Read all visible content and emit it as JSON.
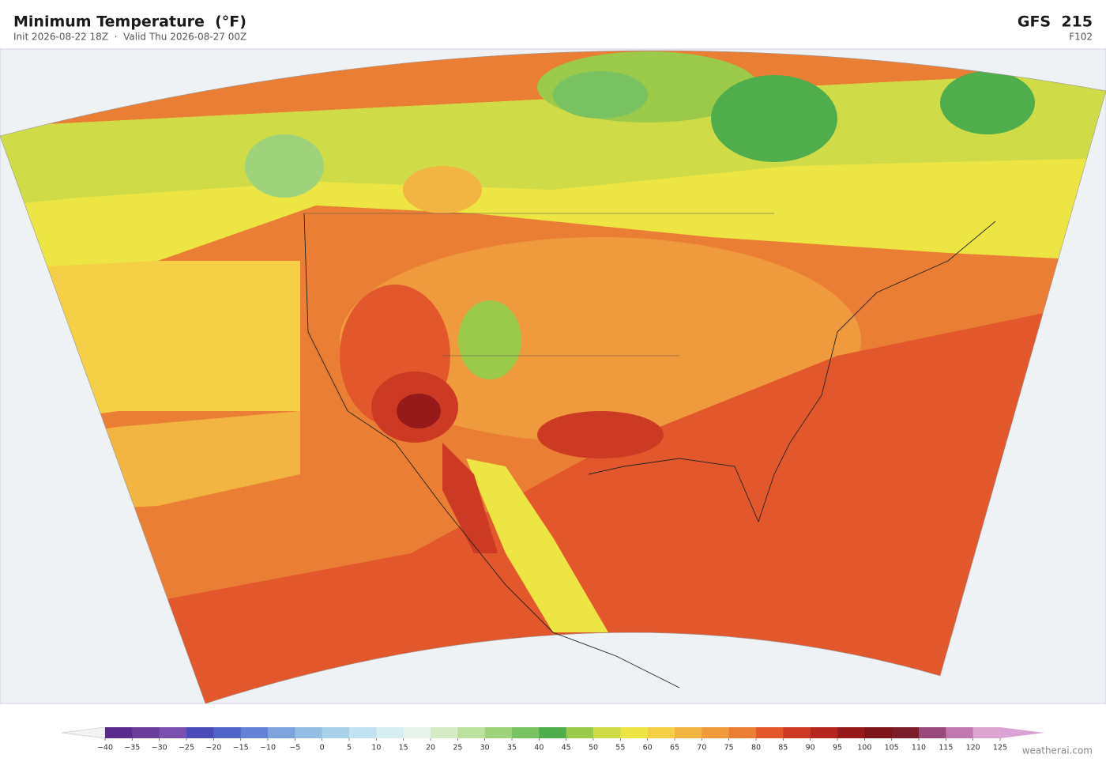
{
  "header": {
    "title": "Minimum Temperature  (°F)",
    "subtitle": "Init 2026-08-22 18Z  ·  Valid Thu 2026-08-27 00Z",
    "model": "GFS  215",
    "forecast_hour": "F102"
  },
  "colorbar": {
    "ticks": [
      {
        "value": -40,
        "label": "−40"
      },
      {
        "value": -35,
        "label": "−35"
      },
      {
        "value": -30,
        "label": "−30"
      },
      {
        "value": -25,
        "label": "−25"
      },
      {
        "value": -20,
        "label": "−20"
      },
      {
        "value": -15,
        "label": "−15"
      },
      {
        "value": -10,
        "label": "−10"
      },
      {
        "value": -5,
        "label": "−5"
      },
      0,
      5,
      10,
      15,
      20,
      25,
      30,
      35,
      40,
      45,
      50,
      55,
      60,
      65,
      70,
      75,
      80,
      85,
      90,
      95,
      100,
      105,
      110,
      115,
      120,
      125
    ],
    "colors": [
      "#5b2a8e",
      "#6a3d9a",
      "#7b4fb0",
      "#4a4ab8",
      "#4f63c8",
      "#6381d6",
      "#7ea3dd",
      "#93bde2",
      "#a9d2ea",
      "#c1e2f0",
      "#d6edf1",
      "#e6f4ec",
      "#d4ebc6",
      "#bde29f",
      "#9ed37c",
      "#78c262",
      "#4fad4c",
      "#9bc94a",
      "#cfdc48",
      "#ece544",
      "#f5cf45",
      "#f3b541",
      "#ef9a3c",
      "#eb7e35",
      "#e2572b",
      "#cd3a24",
      "#b5261f",
      "#961a1a",
      "#7e1518",
      "#7a1c2a",
      "#9a4a7a",
      "#c07ab0",
      "#dca6d0"
    ],
    "under_color": "#f2f2f2",
    "over_color": "#d9a4d4"
  },
  "footer": {
    "credit": "weatherai.com"
  }
}
